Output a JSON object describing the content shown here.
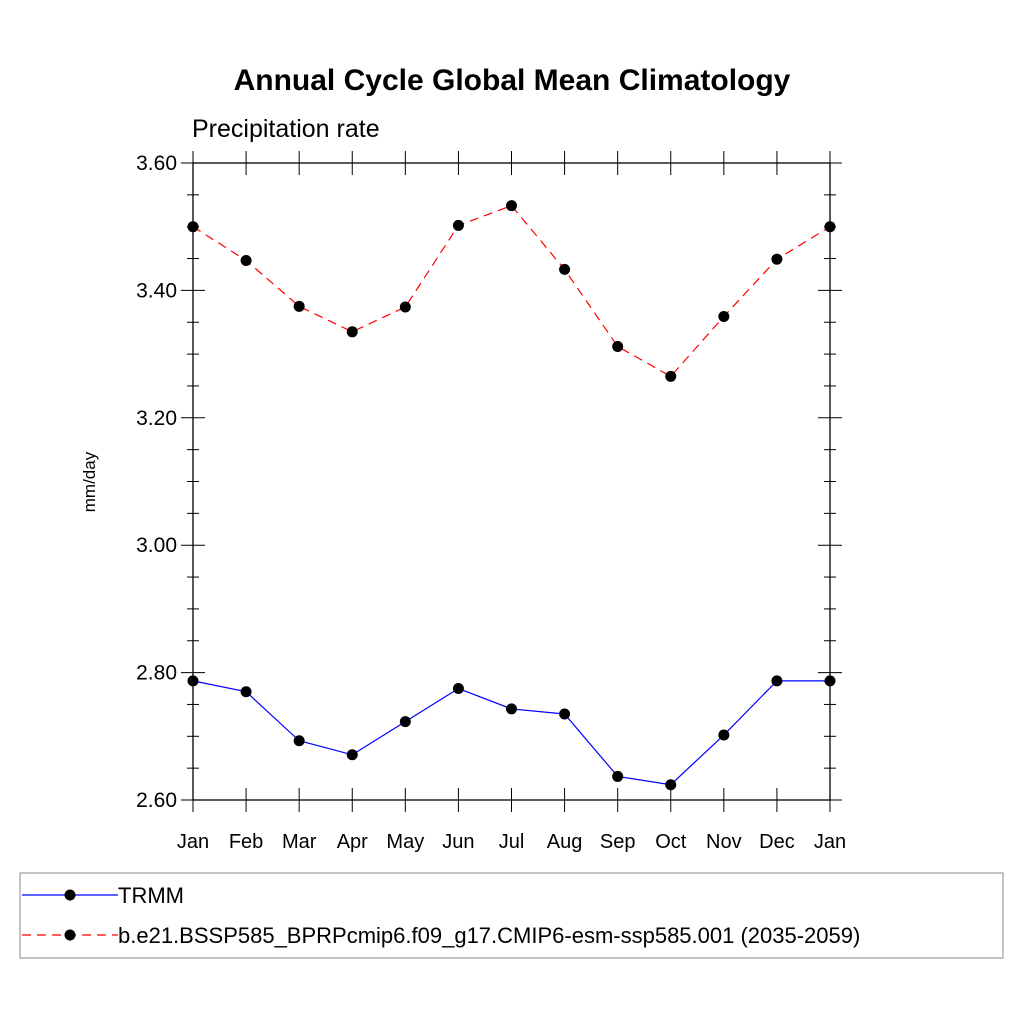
{
  "chart_data": {
    "type": "line",
    "title": "Annual Cycle Global Mean Climatology",
    "subtitle": "Precipitation rate",
    "xlabel": "",
    "ylabel": "mm/day",
    "categories": [
      "Jan",
      "Feb",
      "Mar",
      "Apr",
      "May",
      "Jun",
      "Jul",
      "Aug",
      "Sep",
      "Oct",
      "Nov",
      "Dec",
      "Jan"
    ],
    "ylim": [
      2.6,
      3.6
    ],
    "yticks": [
      "2.60",
      "2.80",
      "3.00",
      "3.20",
      "3.40",
      "3.60"
    ],
    "legend_position": "bottom",
    "grid": false,
    "series": [
      {
        "name": "TRMM",
        "color": "#0000ff",
        "dash": "solid",
        "values": [
          2.787,
          2.77,
          2.693,
          2.671,
          2.723,
          2.775,
          2.743,
          2.735,
          2.637,
          2.624,
          2.702,
          2.787,
          2.787
        ]
      },
      {
        "name": "b.e21.BSSP585_BPRPcmip6.f09_g17.CMIP6-esm-ssp585.001 (2035-2059)",
        "color": "#ff0000",
        "dash": "dashed",
        "values": [
          3.5,
          3.447,
          3.375,
          3.335,
          3.374,
          3.502,
          3.533,
          3.433,
          3.312,
          3.265,
          3.359,
          3.449,
          3.5
        ]
      }
    ]
  }
}
